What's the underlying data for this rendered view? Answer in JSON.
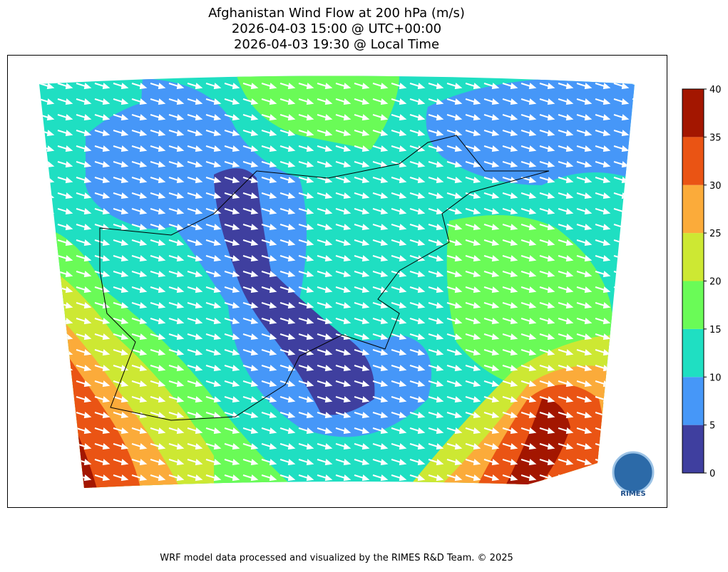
{
  "header": {
    "title": [
      "Afghanistan Wind Flow at 200 hPa (m/s)",
      "2026-04-03 15:00 @ UTC+00:00",
      "2026-04-03 19:30 @ Local Time"
    ]
  },
  "colorbar": {
    "ticks": [
      0,
      5,
      10,
      15,
      20,
      25,
      30,
      35,
      40
    ],
    "colors": [
      "#3f3f9f",
      "#4697f8",
      "#1fdfc2",
      "#6afb57",
      "#cde833",
      "#fbab3a",
      "#ea5414",
      "#a31600"
    ]
  },
  "logo": {
    "label": "RIMES"
  },
  "footer": {
    "text": "WRF model data processed and visualized by the RIMES R&D Team. © 2025"
  }
}
